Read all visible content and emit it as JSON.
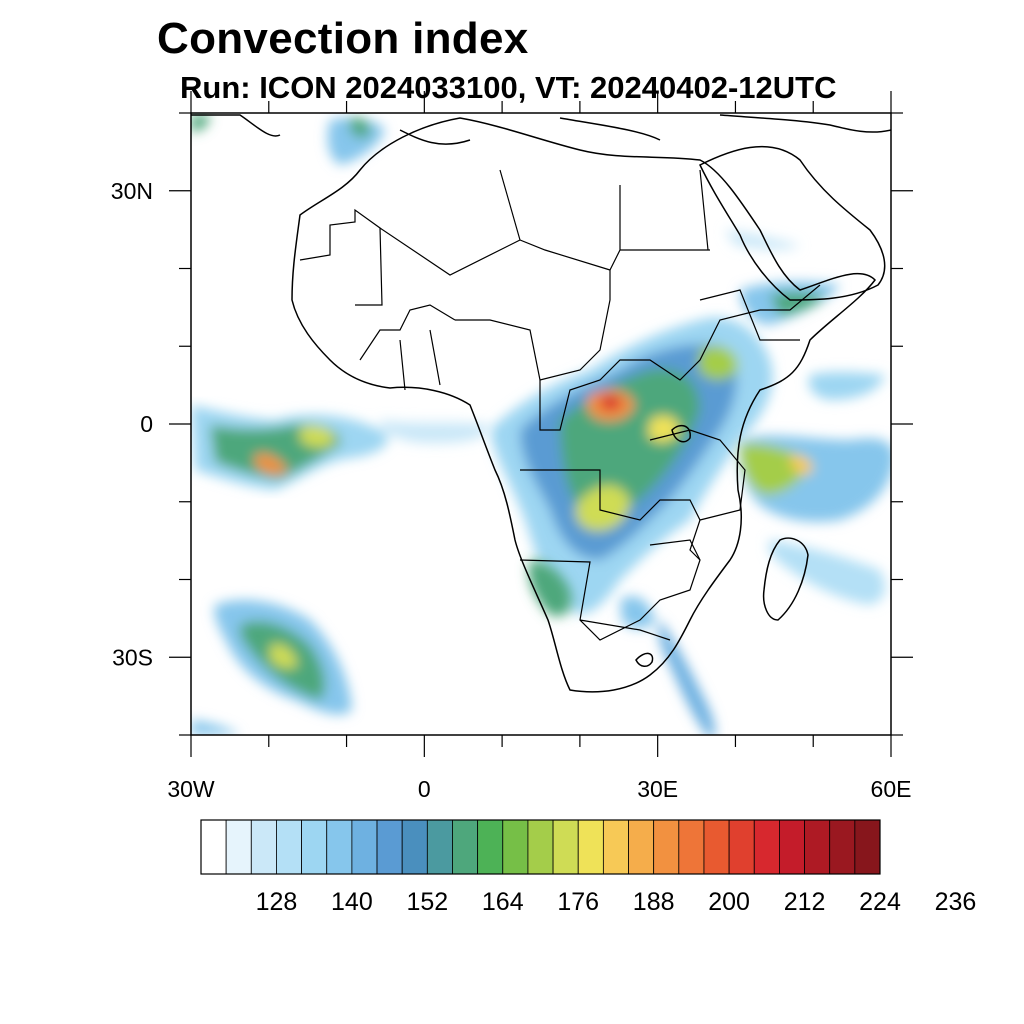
{
  "title": "Convection index",
  "subtitle": "Run: ICON 2024033100,  VT: 20240402-12UTC",
  "map": {
    "lon_range": [
      -30,
      60
    ],
    "lat_range": [
      -40,
      40
    ],
    "x_ticks": [
      {
        "lon": -30,
        "label": "30W"
      },
      {
        "lon": 0,
        "label": "0"
      },
      {
        "lon": 30,
        "label": "30E"
      },
      {
        "lon": 60,
        "label": "60E"
      }
    ],
    "y_ticks": [
      {
        "lat": 30,
        "label": "30N"
      },
      {
        "lat": 0,
        "label": "0"
      },
      {
        "lat": -30,
        "label": "30S"
      }
    ]
  },
  "colorbar": {
    "colors": [
      "#ffffff",
      "#e6f4fc",
      "#cbe8f8",
      "#b4e0f6",
      "#9dd6f2",
      "#86c6ec",
      "#6eb1e1",
      "#5a9bd3",
      "#4a8fbe",
      "#4b9aa0",
      "#4ea77c",
      "#4db256",
      "#76bf47",
      "#a4cd4a",
      "#cfdc55",
      "#efe258",
      "#f7c956",
      "#f5ad4b",
      "#f29140",
      "#ee7538",
      "#e85a30",
      "#e0402e",
      "#d7282e",
      "#c41c2a",
      "#ae1a24",
      "#9a1820",
      "#87161c"
    ],
    "labels": [
      "128",
      "140",
      "152",
      "164",
      "176",
      "188",
      "200",
      "212",
      "224",
      "236"
    ],
    "label_positions": [
      3,
      6,
      9,
      12,
      15,
      18,
      21,
      24,
      27,
      30
    ]
  }
}
